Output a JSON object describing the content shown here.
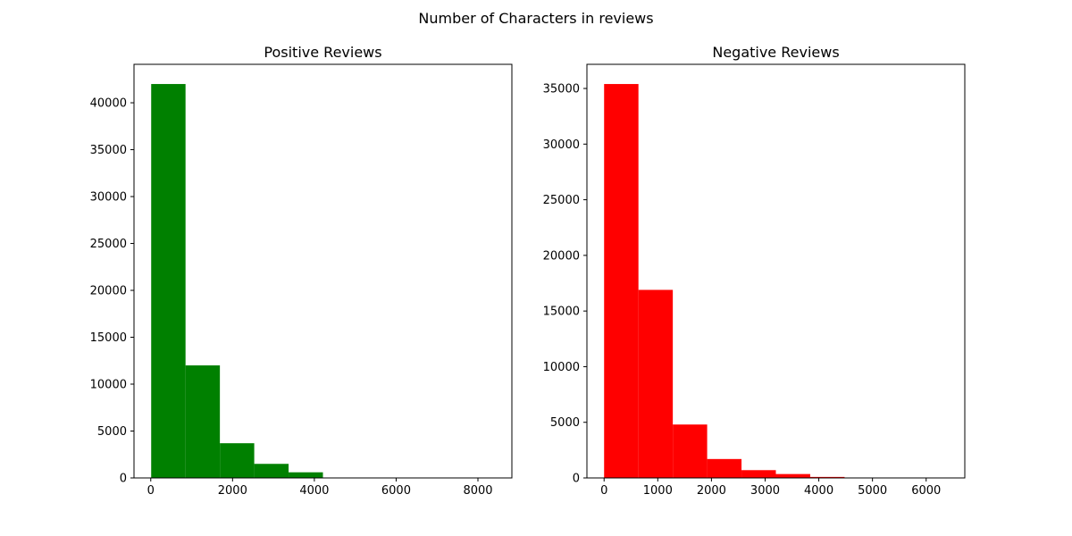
{
  "figure": {
    "suptitle": "Number of Characters in reviews"
  },
  "chart_data": [
    {
      "type": "bar",
      "subtype": "histogram",
      "title": "Positive Reviews",
      "color": "#008000",
      "bin_edges": [
        10,
        850,
        1690,
        2530,
        3370,
        4210,
        5050,
        5890,
        6730,
        7570,
        8410
      ],
      "values": [
        42000,
        12000,
        3700,
        1500,
        600,
        40,
        10,
        5,
        3,
        2
      ],
      "xlim": [
        -410,
        8830
      ],
      "ylim": [
        0,
        44100
      ],
      "xticks": [
        0,
        2000,
        4000,
        6000,
        8000
      ],
      "yticks": [
        0,
        5000,
        10000,
        15000,
        20000,
        25000,
        30000,
        35000,
        40000
      ],
      "xlabel": "",
      "ylabel": "",
      "grid": false
    },
    {
      "type": "bar",
      "subtype": "histogram",
      "title": "Negative Reviews",
      "color": "#ff0000",
      "bin_edges": [
        0,
        640,
        1280,
        1920,
        2560,
        3200,
        3840,
        4480,
        5120,
        5760,
        6400
      ],
      "values": [
        35400,
        16900,
        4800,
        1700,
        700,
        350,
        90,
        20,
        8,
        3
      ],
      "xlim": [
        -320,
        6720
      ],
      "ylim": [
        0,
        37170
      ],
      "xticks": [
        0,
        1000,
        2000,
        3000,
        4000,
        5000,
        6000
      ],
      "yticks": [
        0,
        5000,
        10000,
        15000,
        20000,
        25000,
        30000,
        35000
      ],
      "xlabel": "",
      "ylabel": "",
      "grid": false
    }
  ]
}
